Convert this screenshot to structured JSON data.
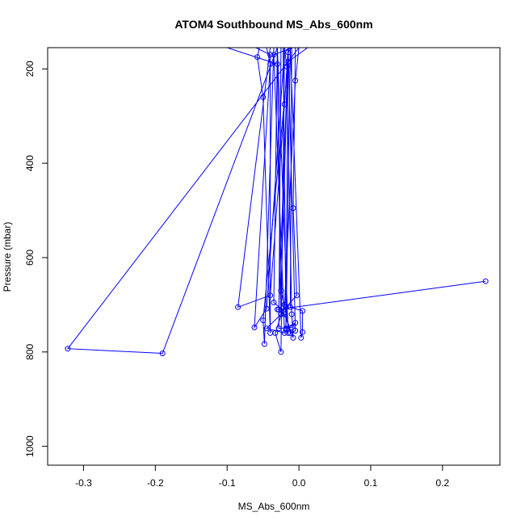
{
  "chart_data": {
    "type": "line",
    "title": "ATOM4 Southbound MS_Abs_600nm",
    "xlabel": "MS_Abs_600nm",
    "ylabel": "Pressure (mbar)",
    "xlim": [
      -0.35,
      0.28
    ],
    "ylim": [
      1040,
      155
    ],
    "y_axis_inverted": true,
    "x_ticks": [
      -0.3,
      -0.2,
      -0.1,
      0.0,
      0.1,
      0.2
    ],
    "x_tick_labels": [
      "-0.3",
      "-0.2",
      "-0.1",
      "0.0",
      "0.1",
      "0.2"
    ],
    "y_ticks": [
      200,
      400,
      600,
      800,
      1000
    ],
    "y_tick_labels": [
      "200",
      "400",
      "600",
      "800",
      "1000"
    ],
    "grid": false,
    "legend": "none",
    "marker": "open-circle",
    "series_color": "#0000ff",
    "series": [
      {
        "points": [
          [
            -0.1,
            155
          ],
          [
            -0.03,
            190
          ],
          [
            -0.025,
            720
          ],
          [
            -0.045,
            750
          ],
          [
            -0.02,
            760
          ],
          [
            -0.035,
            170
          ],
          [
            -0.01,
            155
          ]
        ]
      },
      {
        "points": [
          [
            0.0,
            155
          ],
          [
            -0.005,
            225
          ],
          [
            -0.02,
            700
          ],
          [
            -0.033,
            760
          ],
          [
            -0.025,
            800
          ],
          [
            -0.02,
            155
          ]
        ]
      },
      {
        "points": [
          [
            -0.0,
            155
          ],
          [
            -0.322,
            793
          ],
          [
            -0.19,
            803
          ],
          [
            -0.03,
            155
          ]
        ]
      },
      {
        "points": [
          [
            0.26,
            650
          ],
          [
            -0.03,
            710
          ],
          [
            -0.028,
            710
          ],
          [
            -0.015,
            155
          ]
        ]
      },
      {
        "points": [
          [
            -0.015,
            155
          ],
          [
            -0.02,
            275
          ],
          [
            -0.04,
            680
          ],
          [
            -0.085,
            705
          ],
          [
            -0.04,
            155
          ]
        ]
      },
      {
        "points": [
          [
            -0.055,
            155
          ],
          [
            -0.058,
            175
          ],
          [
            -0.05,
            260
          ],
          [
            -0.04,
            760
          ],
          [
            -0.04,
            170
          ],
          [
            -0.06,
            155
          ]
        ]
      },
      {
        "points": [
          [
            -0.01,
            155
          ],
          [
            -0.015,
            165
          ],
          [
            -0.025,
            670
          ],
          [
            -0.012,
            760
          ],
          [
            -0.005,
            755
          ],
          [
            -0.015,
            160
          ]
        ]
      },
      {
        "points": [
          [
            -0.02,
            155
          ],
          [
            -0.017,
            195
          ],
          [
            -0.01,
            720
          ],
          [
            -0.008,
            770
          ],
          [
            -0.02,
            720
          ]
        ]
      },
      {
        "points": [
          [
            -0.005,
            155
          ],
          [
            -0.008,
            495
          ],
          [
            -0.003,
            680
          ],
          [
            -0.018,
            705
          ],
          [
            -0.015,
            155
          ]
        ]
      },
      {
        "points": [
          [
            0.012,
            155
          ],
          [
            -0.015,
            185
          ],
          [
            -0.05,
            733
          ],
          [
            -0.048,
            783
          ],
          [
            -0.035,
            155
          ]
        ]
      },
      {
        "points": [
          [
            -0.01,
            155
          ],
          [
            -0.012,
            705
          ],
          [
            0.005,
            713
          ],
          [
            0.005,
            758
          ],
          [
            0.003,
            770
          ],
          [
            -0.012,
            155
          ]
        ]
      },
      {
        "points": [
          [
            -0.045,
            155
          ],
          [
            -0.04,
            190
          ],
          [
            -0.062,
            748
          ],
          [
            -0.045,
            708
          ],
          [
            -0.02,
            155
          ]
        ]
      },
      {
        "points": [
          [
            -0.025,
            155
          ],
          [
            -0.028,
            750
          ],
          [
            -0.01,
            748
          ],
          [
            -0.005,
            738
          ],
          [
            -0.018,
            752
          ],
          [
            -0.022,
            155
          ]
        ]
      },
      {
        "points": [
          [
            -0.03,
            155
          ],
          [
            -0.025,
            720
          ],
          [
            -0.02,
            715
          ],
          [
            -0.035,
            695
          ],
          [
            -0.03,
            155
          ]
        ]
      },
      {
        "points": [
          [
            -0.012,
            155
          ],
          [
            -0.018,
            750
          ],
          [
            -0.015,
            760
          ],
          [
            -0.03,
            155
          ]
        ]
      }
    ]
  }
}
